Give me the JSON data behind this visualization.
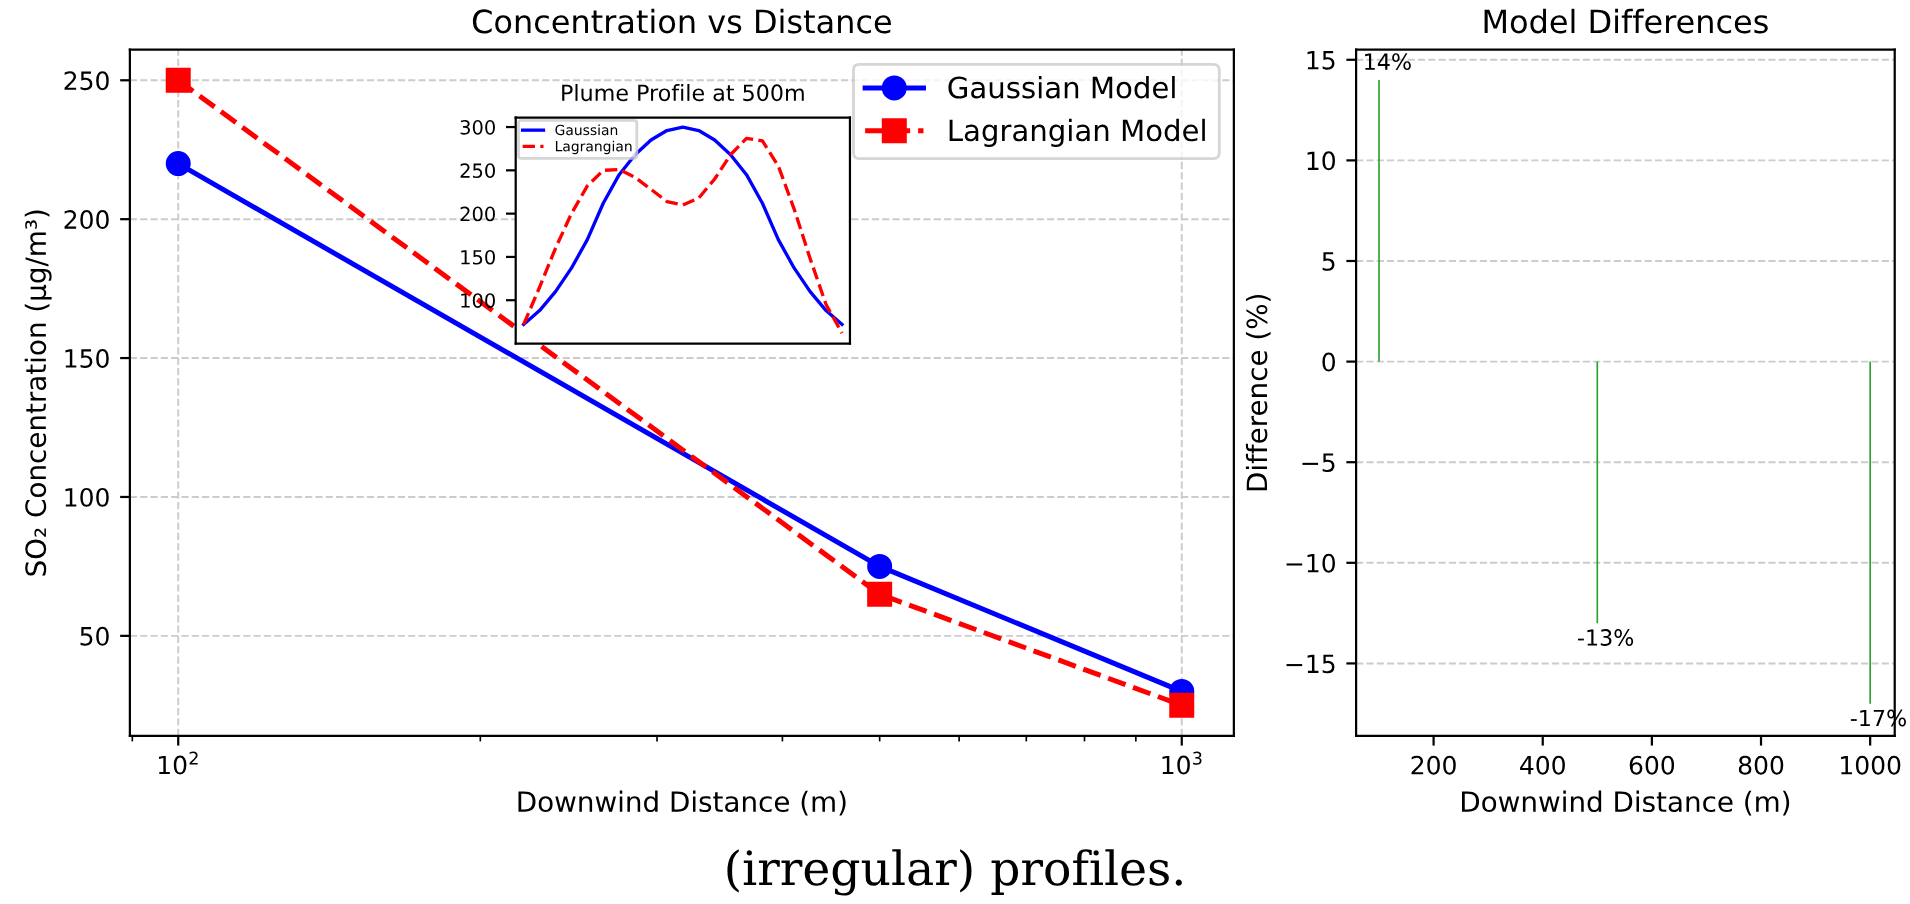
{
  "chart_data": [
    {
      "type": "line",
      "title": "Concentration vs Distance",
      "xlabel": "Downwind Distance (m)",
      "ylabel": "SO₂ Concentration (µg/m³)",
      "x": [
        100,
        500,
        1000
      ],
      "log": "x",
      "xlim": [
        89.5,
        1127
      ],
      "ylim": [
        14,
        261
      ],
      "xticks": [
        {
          "value": 100,
          "label": "10$^{2}$"
        },
        {
          "value": 1000,
          "label": "10$^{3}$"
        }
      ],
      "yticks": [
        50,
        100,
        150,
        200,
        250
      ],
      "grid": true,
      "legend": "top right",
      "series": [
        {
          "name": "Gaussian Model",
          "color": "#0000ff",
          "values": [
            220,
            75,
            30
          ],
          "marker": "circle",
          "line_style": "solid"
        },
        {
          "name": "Lagrangian Model",
          "color": "#ff0000",
          "values": [
            250,
            65,
            25
          ],
          "marker": "square",
          "line_style": "dashed"
        }
      ],
      "annotations": [
        "(irregular) profiles."
      ]
    },
    {
      "type": "line",
      "title": "Plume Profile at 500m",
      "categories": [
        null,
        null,
        null,
        null,
        null,
        null,
        null,
        null,
        null,
        null,
        null,
        null,
        null,
        null,
        null,
        null,
        null,
        null,
        null,
        null,
        null
      ],
      "ylim": [
        50,
        311
      ],
      "yticks": [
        100,
        150,
        200,
        250,
        300
      ],
      "tick_labels": "y",
      "grid": false,
      "legend": "top left",
      "series": [
        {
          "name": "Gaussian",
          "color": "#0000ff",
          "line_style": "solid",
          "values": [
            72,
            88,
            110,
            137,
            170,
            212,
            245,
            268,
            285,
            296,
            300,
            296,
            285,
            268,
            245,
            212,
            170,
            137,
            110,
            88,
            72
          ]
        },
        {
          "name": "Lagrangian",
          "color": "#ff0000",
          "line_style": "dashed",
          "values": [
            72,
            115,
            160,
            200,
            232,
            250,
            251,
            242,
            228,
            214,
            210,
            218,
            240,
            268,
            287,
            284,
            255,
            205,
            148,
            95,
            62
          ]
        }
      ]
    },
    {
      "type": "bar",
      "title": "Model Differences",
      "xlabel": "Downwind Distance (m)",
      "ylabel": "Difference (%)",
      "x": [
        100,
        500,
        1000
      ],
      "values": [
        14,
        -13,
        -17
      ],
      "color": "#2ca02c",
      "value_labels": [
        "14%",
        "-13%",
        "-17%"
      ],
      "xlim": [
        58,
        1045
      ],
      "ylim": [
        -18.6,
        15.5
      ],
      "xticks": [
        200,
        400,
        600,
        800,
        1000
      ],
      "yticks": [
        {
          "value": -15,
          "label": "−15"
        },
        {
          "value": -10,
          "label": "−10"
        },
        {
          "value": -5,
          "label": "−5"
        },
        0,
        5,
        10,
        15
      ],
      "grid": "y"
    }
  ]
}
